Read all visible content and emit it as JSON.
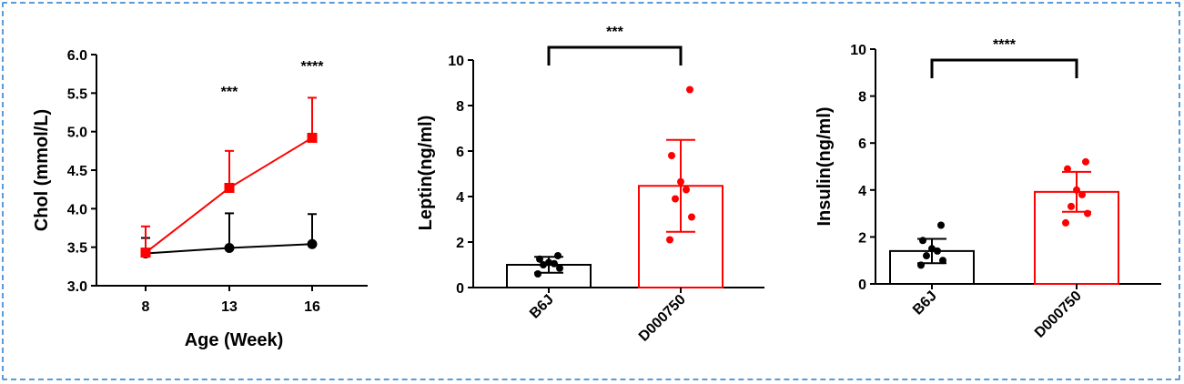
{
  "chart_data": [
    {
      "type": "line",
      "xlabel": "Age (Week)",
      "ylabel": "Chol (mmol/L)",
      "x": [
        8,
        13,
        16
      ],
      "xticks": [
        "8",
        "13",
        "16"
      ],
      "ylim": [
        3.0,
        6.0
      ],
      "yticks": [
        "3.0",
        "3.5",
        "4.0",
        "4.5",
        "5.0",
        "5.5",
        "6.0"
      ],
      "series": [
        {
          "color": "#000000",
          "marker": "circle",
          "values": [
            3.42,
            3.49,
            3.54
          ],
          "err": [
            0.2,
            0.45,
            0.39
          ]
        },
        {
          "color": "#ff0000",
          "marker": "square",
          "values": [
            3.43,
            4.27,
            4.92
          ],
          "err": [
            0.34,
            0.48,
            0.52
          ]
        }
      ],
      "annotations": [
        {
          "x": 13,
          "text": "***"
        },
        {
          "x": 16,
          "text": "****"
        }
      ]
    },
    {
      "type": "bar",
      "ylabel": "Leptin(ng/ml)",
      "categories": [
        "B6J",
        "D000750"
      ],
      "ylim": [
        0,
        10
      ],
      "yticks": [
        "0",
        "2",
        "4",
        "6",
        "8",
        "10"
      ],
      "values": [
        1.0,
        4.47
      ],
      "err": [
        0.35,
        2.02
      ],
      "colors": [
        "#000000",
        "#ff0000"
      ],
      "points": [
        [
          0.6,
          0.85,
          1.0,
          1.05,
          1.1,
          1.25,
          1.4
        ],
        [
          2.1,
          3.1,
          3.9,
          4.3,
          4.65,
          5.8,
          8.7
        ]
      ],
      "significance": "***"
    },
    {
      "type": "bar",
      "ylabel": "Insulin(ng/ml)",
      "categories": [
        "B6J",
        "D000750"
      ],
      "ylim": [
        0,
        10
      ],
      "yticks": [
        "0",
        "2",
        "4",
        "6",
        "8",
        "10"
      ],
      "values": [
        1.4,
        3.92
      ],
      "err": [
        0.52,
        0.85
      ],
      "colors": [
        "#000000",
        "#ff0000"
      ],
      "points": [
        [
          0.8,
          1.0,
          1.2,
          1.4,
          1.5,
          1.85,
          2.5
        ],
        [
          2.6,
          3.0,
          3.3,
          3.8,
          4.0,
          4.9,
          5.2
        ]
      ],
      "significance": "****"
    }
  ]
}
